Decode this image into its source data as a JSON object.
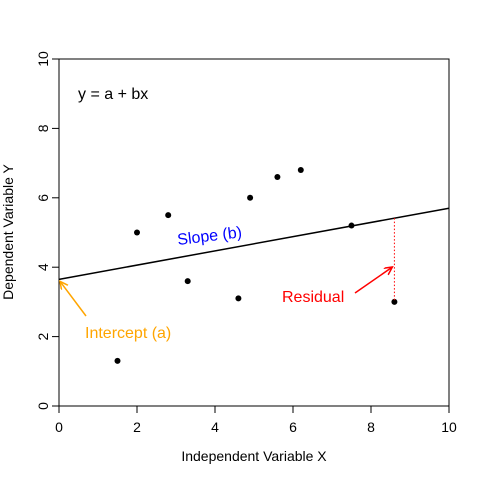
{
  "chart_data": {
    "type": "scatter",
    "title": "",
    "xlabel": "Independent Variable X",
    "ylabel": "Dependent Variable Y",
    "xlim": [
      0,
      10
    ],
    "ylim": [
      0,
      10
    ],
    "xticks": [
      0,
      2,
      4,
      6,
      8,
      10
    ],
    "yticks": [
      0,
      2,
      4,
      6,
      8,
      10
    ],
    "grid": false,
    "points": [
      {
        "x": 1.5,
        "y": 1.3
      },
      {
        "x": 2.0,
        "y": 5.0
      },
      {
        "x": 2.8,
        "y": 5.5
      },
      {
        "x": 3.3,
        "y": 3.6
      },
      {
        "x": 4.6,
        "y": 3.1
      },
      {
        "x": 4.9,
        "y": 6.0
      },
      {
        "x": 5.6,
        "y": 6.6
      },
      {
        "x": 6.2,
        "y": 6.8
      },
      {
        "x": 7.5,
        "y": 5.2
      },
      {
        "x": 8.6,
        "y": 3.0
      }
    ],
    "regression_line": {
      "intercept": 3.65,
      "slope": 0.205
    },
    "equation_label": "y = a + bx",
    "annotations": {
      "slope": {
        "text": "Slope (b)",
        "color": "#0000ff"
      },
      "intercept": {
        "text": "Intercept (a)",
        "color": "#ffa500"
      },
      "residual": {
        "text": "Residual",
        "color": "#ff0000",
        "x": 8.6
      }
    }
  }
}
